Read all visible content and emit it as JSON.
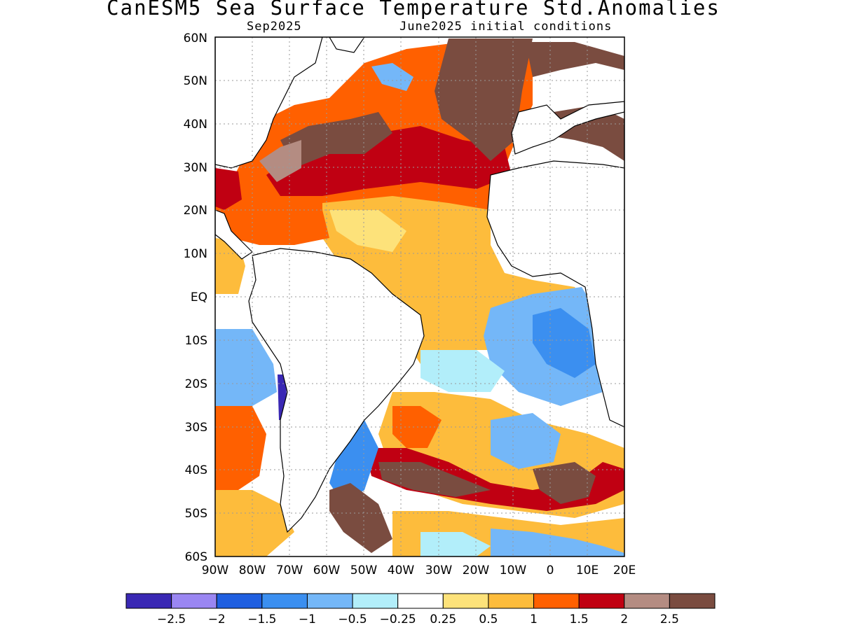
{
  "title": "CanESM5 Sea Surface Temperature Std.Anomalies",
  "subtitle_left": "Sep2025",
  "subtitle_right": "June2025 initial conditions",
  "lat_labels": [
    "60N",
    "50N",
    "40N",
    "30N",
    "20N",
    "10N",
    "EQ",
    "10S",
    "20S",
    "30S",
    "40S",
    "50S",
    "60S"
  ],
  "lon_labels": [
    "90W",
    "80W",
    "70W",
    "60W",
    "50W",
    "40W",
    "30W",
    "20W",
    "10W",
    "0",
    "10E",
    "20E"
  ],
  "colorbar": {
    "colors": [
      "#3a28b4",
      "#9a86f2",
      "#1f5fe0",
      "#3b8ff0",
      "#74b7f8",
      "#b2eefa",
      "#ffffff",
      "#fde27a",
      "#fdbc3c",
      "#ff6000",
      "#c00012",
      "#b48c82",
      "#7a4c40"
    ],
    "labels": [
      "−2.5",
      "−2",
      "−1.5",
      "−1",
      "−0.5",
      "−0.25",
      "0.25",
      "0.5",
      "1",
      "1.5",
      "2",
      "2.5"
    ]
  }
}
